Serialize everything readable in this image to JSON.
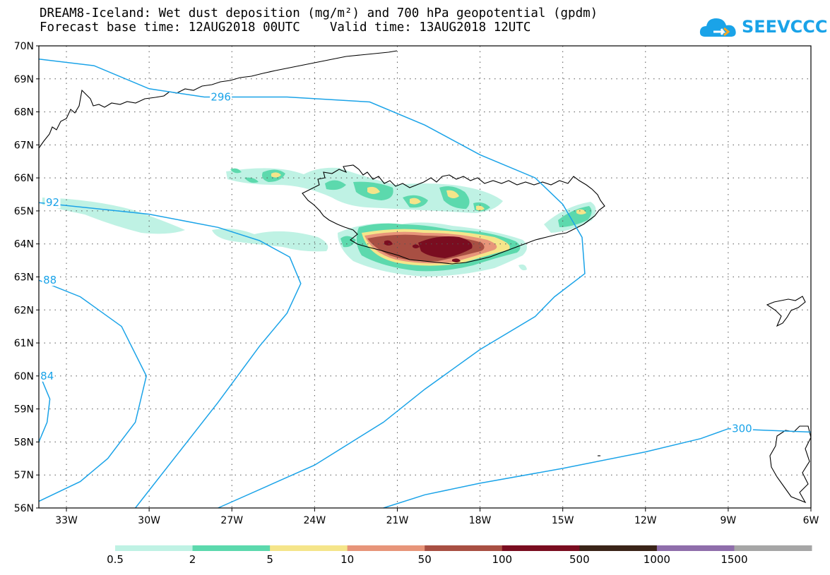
{
  "title_line1": "DREAM8-Iceland: Wet dust deposition (mg/m²) and 700 hPa geopotential (gpdm)",
  "title_line2": "Forecast base time: 12AUG2018 00UTC    Valid time: 13AUG2018 12UTC",
  "logo_text": "SEEVCCC",
  "lat_labels": [
    "70N",
    "69N",
    "68N",
    "67N",
    "66N",
    "65N",
    "64N",
    "63N",
    "62N",
    "61N",
    "60N",
    "59N",
    "58N",
    "57N",
    "56N"
  ],
  "lon_labels": [
    "33W",
    "30W",
    "27W",
    "24W",
    "21W",
    "18W",
    "15W",
    "12W",
    "9W",
    "6W"
  ],
  "contour_labels": [
    "296",
    "92",
    "88",
    "84",
    "300"
  ],
  "colorbar": {
    "colors": [
      "#bff2e4",
      "#5cd9ad",
      "#f5e58a",
      "#e7957a",
      "#a84f43",
      "#7a0d20",
      "#3a2418",
      "#8f6eab",
      "#a6a6a6"
    ],
    "labels": [
      "0.5",
      "2",
      "5",
      "10",
      "50",
      "100",
      "500",
      "1000",
      "1500"
    ]
  },
  "chart_data": {
    "type": "map",
    "field": "wet dust deposition (mg/m²)",
    "contour_field": "700 hPa geopotential (gpdm)",
    "lat_range": [
      56,
      70
    ],
    "lon_range": [
      -34,
      -6
    ],
    "contours": [
      {
        "label": "296",
        "points": [
          [
            -34,
            69.6
          ],
          [
            -32,
            69.4
          ],
          [
            -30,
            68.7
          ],
          [
            -28,
            68.45
          ],
          [
            -25,
            68.45
          ],
          [
            -22,
            68.3
          ],
          [
            -20,
            67.6
          ],
          [
            -18,
            66.7
          ],
          [
            -16,
            66.0
          ],
          [
            -15,
            65.2
          ],
          [
            -14.3,
            64.2
          ],
          [
            -14.2,
            63.1
          ],
          [
            -15.3,
            62.4
          ],
          [
            -16,
            61.8
          ],
          [
            -18,
            60.8
          ],
          [
            -20,
            59.6
          ],
          [
            -21.5,
            58.6
          ],
          [
            -24,
            57.3
          ],
          [
            -27.5,
            56
          ]
        ]
      },
      {
        "label": "92",
        "points": [
          [
            -34,
            65.25
          ],
          [
            -30,
            64.9
          ],
          [
            -27.5,
            64.5
          ],
          [
            -26,
            64.1
          ],
          [
            -24.9,
            63.6
          ],
          [
            -24.5,
            62.8
          ],
          [
            -25,
            61.9
          ],
          [
            -26,
            60.9
          ],
          [
            -27.5,
            59.2
          ],
          [
            -29,
            57.6
          ],
          [
            -30.5,
            56
          ]
        ]
      },
      {
        "label": "88",
        "points": [
          [
            -34,
            62.9
          ],
          [
            -32.5,
            62.4
          ],
          [
            -31,
            61.5
          ],
          [
            -30.1,
            60.0
          ],
          [
            -30.5,
            58.6
          ],
          [
            -31.5,
            57.5
          ],
          [
            -32.5,
            56.8
          ],
          [
            -34,
            56.2
          ]
        ]
      },
      {
        "label": "84",
        "points": [
          [
            -34,
            60.1
          ],
          [
            -33.6,
            59.3
          ],
          [
            -33.7,
            58.6
          ],
          [
            -34,
            58.0
          ]
        ]
      },
      {
        "label": "300",
        "points": [
          [
            -21.5,
            56
          ],
          [
            -20,
            56.4
          ],
          [
            -18,
            56.75
          ],
          [
            -15,
            57.2
          ],
          [
            -12,
            57.7
          ],
          [
            -10,
            58.1
          ],
          [
            -9,
            58.4
          ],
          [
            -6,
            58.3
          ]
        ]
      }
    ],
    "deposition_maxima": [
      {
        "area": "south Iceland",
        "max_class": "100-500"
      },
      {
        "area": "north Iceland",
        "max_class": "5-10"
      },
      {
        "area": "east Iceland",
        "max_class": "5-10"
      }
    ]
  }
}
